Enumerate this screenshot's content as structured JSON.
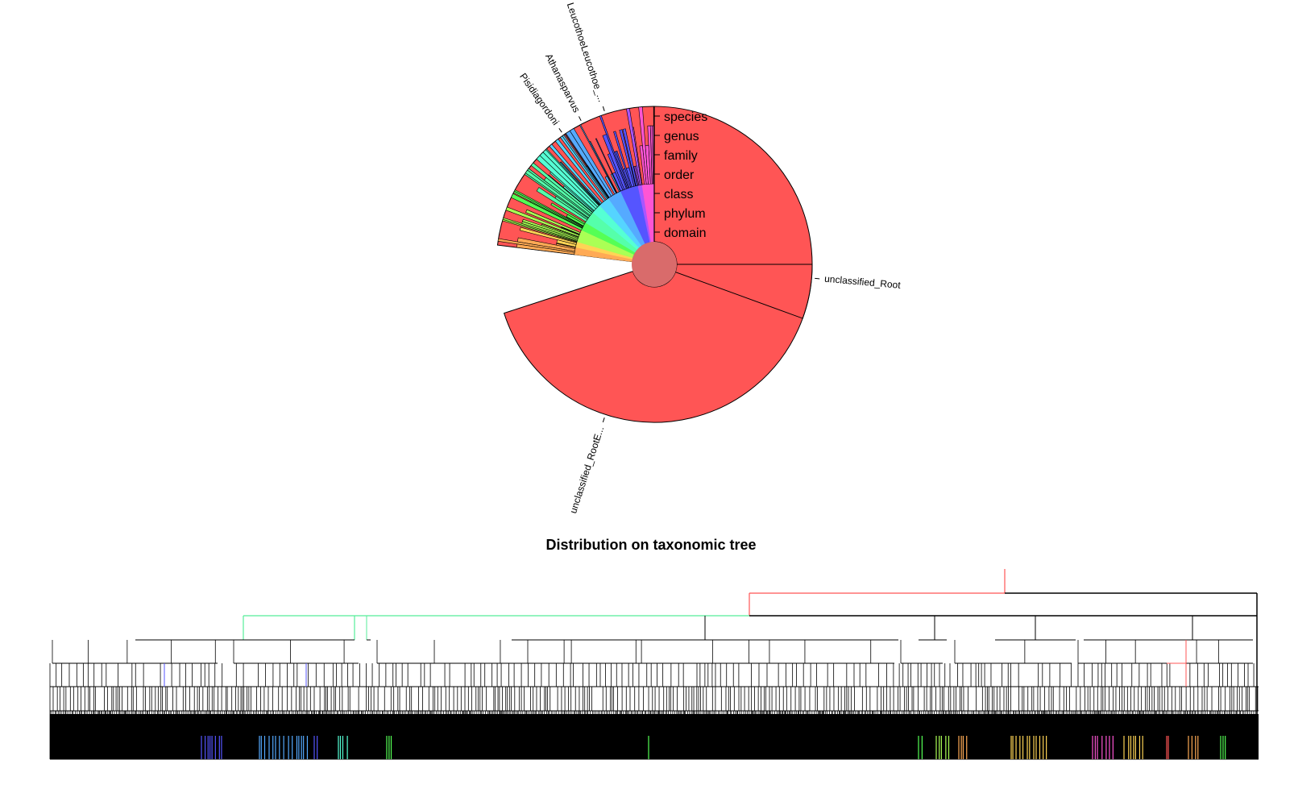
{
  "chart_data": [
    {
      "type": "sunburst",
      "title": "",
      "rank_labels": [
        "species",
        "genus",
        "family",
        "order",
        "class",
        "phylum",
        "domain"
      ],
      "highlighted_taxa": [
        {
          "label": "LeucothoeLeucothoe_...",
          "share": 0.01
        },
        {
          "label": "Athanasparvus",
          "share": 0.01
        },
        {
          "label": "Pisidiagordoni",
          "share": 0.01
        },
        {
          "label": "unclassified_Root",
          "share": 0.055
        },
        {
          "label": "unclassified_RootE...",
          "share": 0.28
        }
      ],
      "root_color": "#d96b6b",
      "palette": [
        "#ff5555",
        "#ffaa55",
        "#ffd455",
        "#aaff55",
        "#55ff55",
        "#55ffaa",
        "#55ffd4",
        "#55d4ff",
        "#55aaff",
        "#5555ff",
        "#aa55ff",
        "#ff55d4"
      ]
    },
    {
      "type": "tree",
      "title": "Distribution on taxonomic tree",
      "levels": [
        "domain",
        "phylum",
        "class",
        "order",
        "family",
        "genus",
        "species"
      ],
      "highlight_colors": [
        "#ff5555",
        "#55ee99"
      ]
    }
  ]
}
